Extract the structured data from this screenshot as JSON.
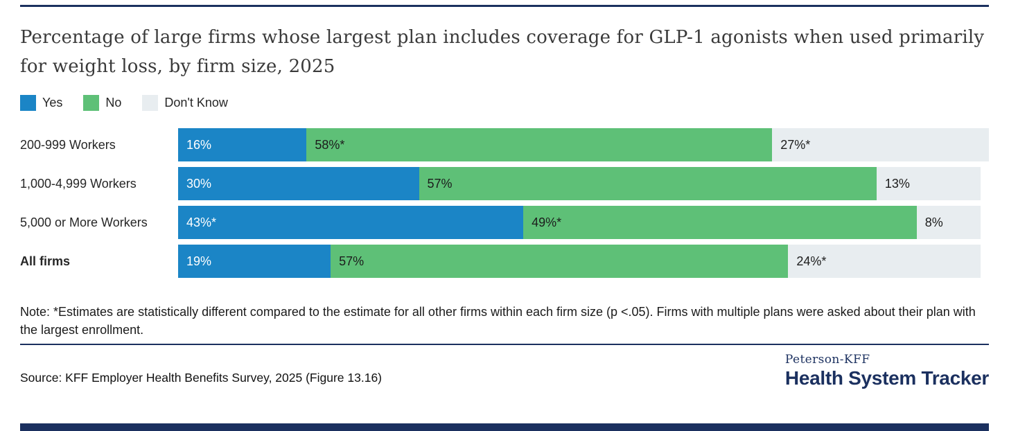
{
  "title": "Percentage of large firms whose largest plan includes coverage for GLP-1 agonists when used primarily for weight loss, by firm size, 2025",
  "legend": [
    {
      "label": "Yes",
      "color": "#1b85c6"
    },
    {
      "label": "No",
      "color": "#5ec077"
    },
    {
      "label": "Don't Know",
      "color": "#e8edf0"
    }
  ],
  "chart_data": {
    "type": "bar",
    "orientation": "horizontal-stacked",
    "categories": [
      "200-999 Workers",
      "1,000-4,999 Workers",
      "5,000 or More Workers",
      "All firms"
    ],
    "bold_categories": [
      "All firms"
    ],
    "series": [
      {
        "name": "Yes",
        "color": "#1b85c6",
        "label_color": "#ffffff",
        "values": [
          16,
          30,
          43,
          19
        ],
        "labels": [
          "16%",
          "30%",
          "43%*",
          "19%"
        ]
      },
      {
        "name": "No",
        "color": "#5ec077",
        "label_color": "#1c1c1c",
        "values": [
          58,
          57,
          49,
          57
        ],
        "labels": [
          "58%*",
          "57%",
          "49%*",
          "57%"
        ]
      },
      {
        "name": "Don't Know",
        "color": "#e8edf0",
        "label_color": "#1c1c1c",
        "values": [
          27,
          13,
          8,
          24
        ],
        "labels": [
          "27%*",
          "13%",
          "8%",
          "24%*"
        ]
      }
    ],
    "xmax": 101,
    "xlabel": "",
    "ylabel": "",
    "grid": false,
    "legend_position": "top-left"
  },
  "note": "Note: *Estimates are statistically different compared to the estimate for all other firms within each firm size (p <.05). Firms with multiple plans were asked about their plan with the largest enrollment.",
  "source": "Source: KFF Employer Health Benefits Survey, 2025 (Figure 13.16)",
  "logo": {
    "top": "Peterson-KFF",
    "bottom": "Health System Tracker"
  },
  "colors": {
    "accent_navy": "#1b305f",
    "yes_blue": "#1b85c6",
    "no_green": "#5ec077",
    "dont_know_gray": "#e8edf0"
  }
}
